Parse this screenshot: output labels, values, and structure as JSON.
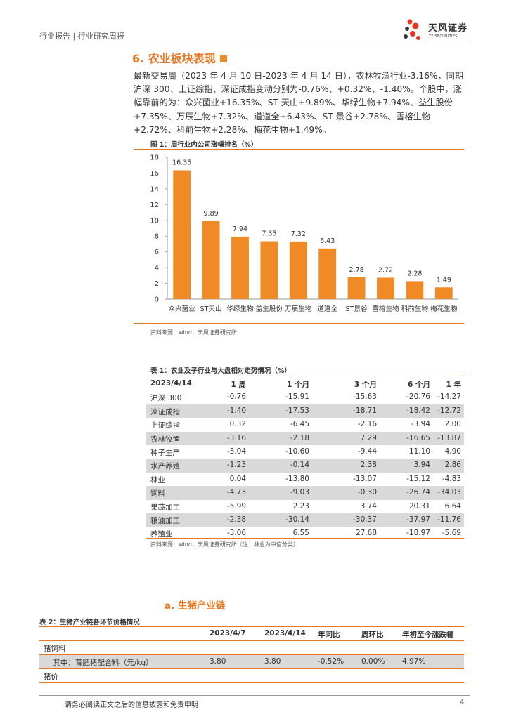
{
  "header": {
    "breadcrumb": "行业报告 | 行业研究周报",
    "logo_name": "天风证券",
    "logo_sub": "TF SECURITIES"
  },
  "section": {
    "title": "6. 农业板块表现"
  },
  "paragraph": "最新交易周（2023 年 4 月 10 日-2023 年 4 月 14 日），农林牧渔行业-3.16%，同期沪深 300、上证综指、深证成指变动分别为-0.76%、+0.32%、-1.40%。个股中，涨幅靠前的为：众兴菌业+16.35%、ST 天山+9.89%、华绿生物+7.94%、益生股份+7.35%、万辰生物+7.32%、道道全+6.43%、ST 景谷+2.78%、雪榕生物+2.72%、科前生物+2.28%、梅花生物+1.49%。",
  "figure1": {
    "title": "图 1：周行业内公司涨幅排名（%）",
    "source": "资料来源：wind，天风证券研究所"
  },
  "chart_data": {
    "type": "bar",
    "title": "周行业内公司涨幅排名（%）",
    "categories": [
      "众兴菌业",
      "ST天山",
      "华绿生物",
      "益生股份",
      "万辰生物",
      "道道全",
      "ST景谷",
      "雪榕生物",
      "科前生物",
      "梅花生物"
    ],
    "values": [
      16.35,
      9.89,
      7.94,
      7.35,
      7.32,
      6.43,
      2.78,
      2.72,
      2.28,
      1.49
    ],
    "value_labels": [
      "16.35",
      "9.89",
      "7.94",
      "7.35",
      "7.32",
      "6.43",
      "2.78",
      "2.72",
      "2.28",
      "1.49"
    ],
    "ylim": [
      0,
      18
    ],
    "yticks": [
      "0",
      "2",
      "4",
      "6",
      "8",
      "10",
      "12",
      "14",
      "16",
      "18"
    ],
    "ytick_values": [
      0,
      2,
      4,
      6,
      8,
      10,
      12,
      14,
      16,
      18
    ],
    "xlabel": "",
    "ylabel": "",
    "bar_color": "#F08A24",
    "grid": false
  },
  "table1": {
    "title": "表 1：农业及子行业与大盘相对走势情况（%）",
    "headers": [
      "2023/4/14",
      "1 周",
      "1 个月",
      "3 个月",
      "6 个月",
      "1 年"
    ],
    "rows": [
      {
        "name": "沪深 300",
        "v": [
          "-0.76",
          "-15.91",
          "-15.63",
          "-20.76",
          "-14.27"
        ],
        "shade": false
      },
      {
        "name": "深证成指",
        "v": [
          "-1.40",
          "-17.53",
          "-18.71",
          "-18.42",
          "-12.72"
        ],
        "shade": true
      },
      {
        "name": "上证综指",
        "v": [
          "0.32",
          "-6.45",
          "-2.16",
          "-3.94",
          "2.00"
        ],
        "shade": false
      },
      {
        "name": "农林牧渔",
        "v": [
          "-3.16",
          "-2.18",
          "7.29",
          "-16.65",
          "-13.87"
        ],
        "shade": true
      },
      {
        "name": "种子生产",
        "v": [
          "-3.04",
          "-10.60",
          "-9.44",
          "11.10",
          "4.90"
        ],
        "shade": false
      },
      {
        "name": "水产养殖",
        "v": [
          "-1.23",
          "-0.14",
          "2.38",
          "3.94",
          "2.86"
        ],
        "shade": true
      },
      {
        "name": "林业",
        "v": [
          "0.04",
          "-13.80",
          "-13.07",
          "-15.12",
          "-4.83"
        ],
        "shade": false
      },
      {
        "name": "饲料",
        "v": [
          "-4.73",
          "-9.03",
          "-0.30",
          "-26.74",
          "-34.03"
        ],
        "shade": true
      },
      {
        "name": "果蔬加工",
        "v": [
          "-5.99",
          "2.23",
          "3.74",
          "20.31",
          "6.64"
        ],
        "shade": false
      },
      {
        "name": "粮油加工",
        "v": [
          "-2.38",
          "-30.14",
          "-30.37",
          "-37.97",
          "-11.76"
        ],
        "shade": true
      },
      {
        "name": "养殖业",
        "v": [
          "-3.06",
          "6.55",
          "27.68",
          "-18.97",
          "-5.69"
        ],
        "shade": false
      }
    ],
    "source": "资料来源：wind，天风证券研究所（注：林业为中信分类）"
  },
  "subsection": {
    "title": "a.  生猪产业链"
  },
  "table2": {
    "title": "表 2：生猪产业链各环节价格情况",
    "headers": [
      "",
      "2023/4/7",
      "2023/4/14",
      "年同比",
      "周环比",
      "年初至今涨跌幅"
    ],
    "rows": [
      {
        "name": "猪饲料",
        "v": [
          "",
          "",
          "",
          "",
          ""
        ],
        "shade": false
      },
      {
        "name": "    其中：育肥猪配合料（元/kg）",
        "v": [
          "3.80",
          "3.80",
          "-0.52%",
          "0.00%",
          "4.97%"
        ],
        "shade": true
      },
      {
        "name": "猪价",
        "v": [
          "",
          "",
          "",
          "",
          ""
        ],
        "shade": false
      }
    ]
  },
  "footer": {
    "disclaimer": "请务必阅读正文之后的信息披露和免责申明",
    "page": "4"
  }
}
